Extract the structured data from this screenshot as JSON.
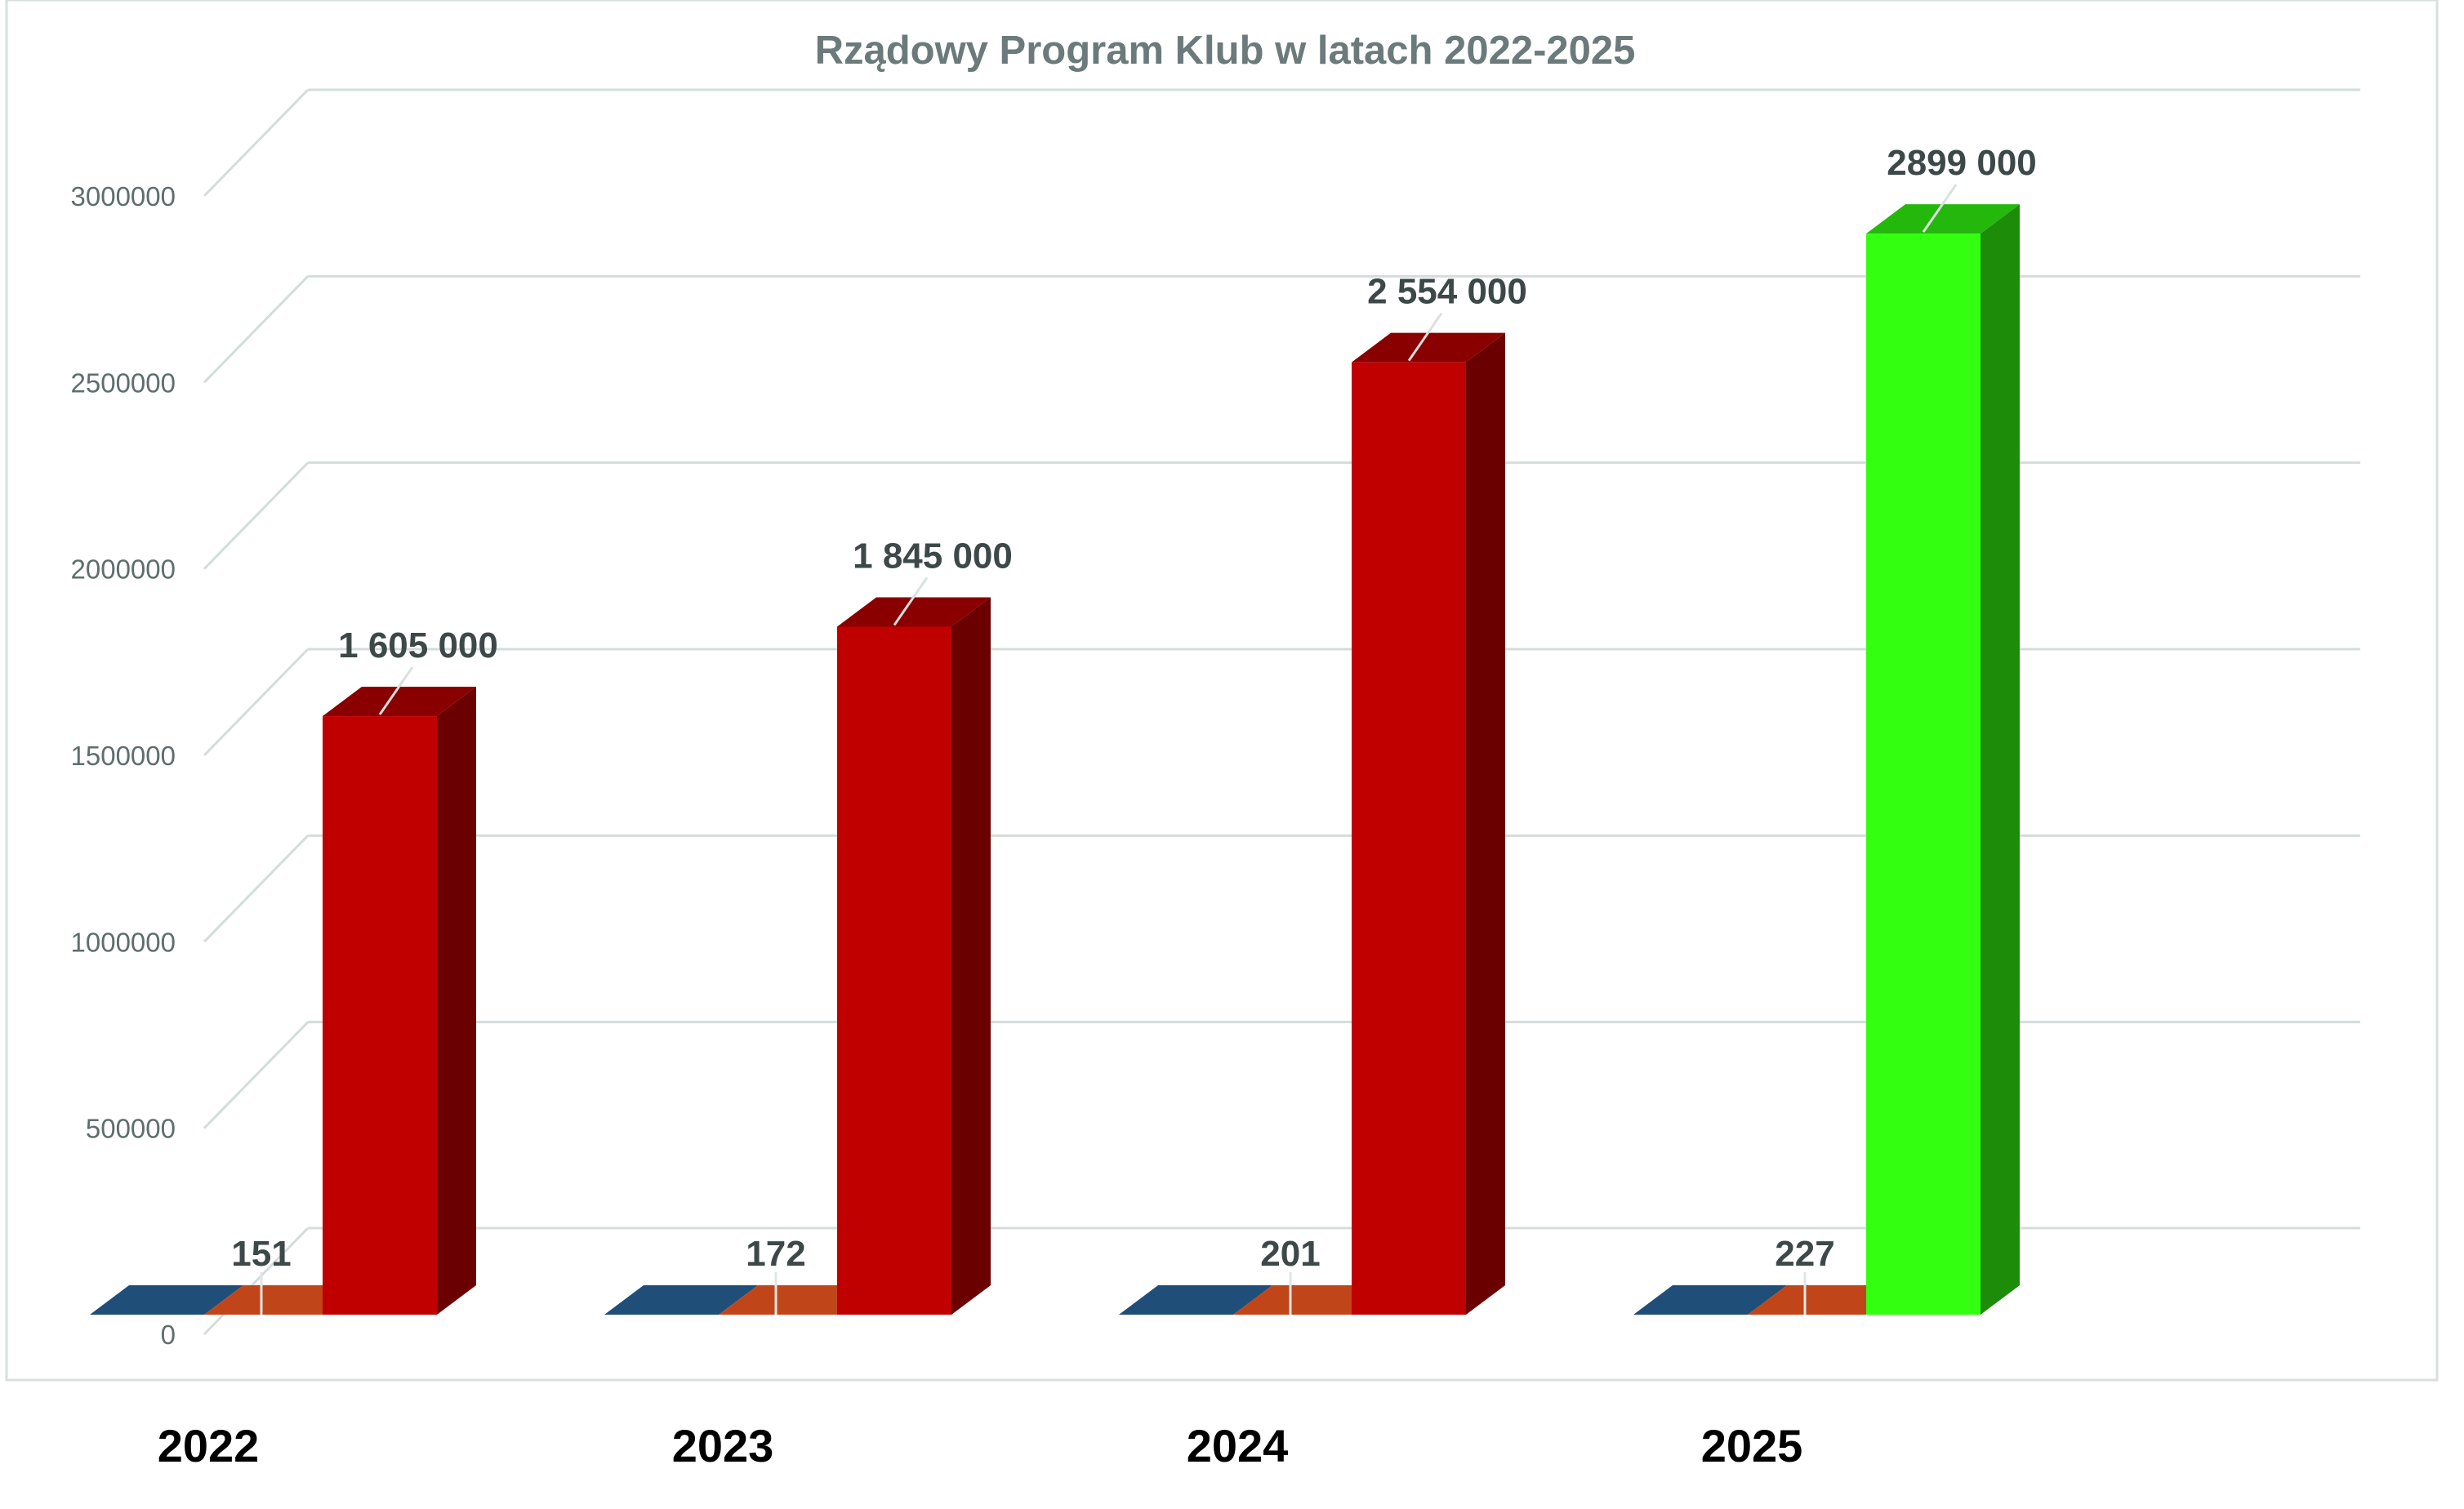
{
  "chart_data": {
    "type": "bar",
    "title": "Rządowy Program Klub w latach 2022-2025",
    "xlabel": "",
    "ylabel": "",
    "ylim": [
      0,
      3000000
    ],
    "y_ticks": [
      0,
      500000,
      1000000,
      1500000,
      2000000,
      2500000,
      3000000
    ],
    "y_tick_labels": [
      "0",
      "500000",
      "1000000",
      "1500000",
      "2000000",
      "2500000",
      "3000000"
    ],
    "categories": [
      "2022",
      "2023",
      "2024",
      "2025"
    ],
    "series": [
      {
        "color": "#1f4e79",
        "values": [
          0,
          0,
          0,
          0
        ]
      },
      {
        "color": "#c0461a",
        "values": [
          151,
          172,
          201,
          227
        ],
        "labels": [
          "151",
          "172",
          "201",
          "227"
        ]
      },
      {
        "colors": [
          "#c00000",
          "#c00000",
          "#c00000",
          "#33ff11"
        ],
        "values": [
          1605000,
          1845000,
          2554000,
          2899000
        ],
        "labels": [
          "1 605 000",
          "1 845 000",
          "2 554 000",
          "2899 000"
        ]
      }
    ],
    "grid": true,
    "legend": "none",
    "style": "3d"
  }
}
